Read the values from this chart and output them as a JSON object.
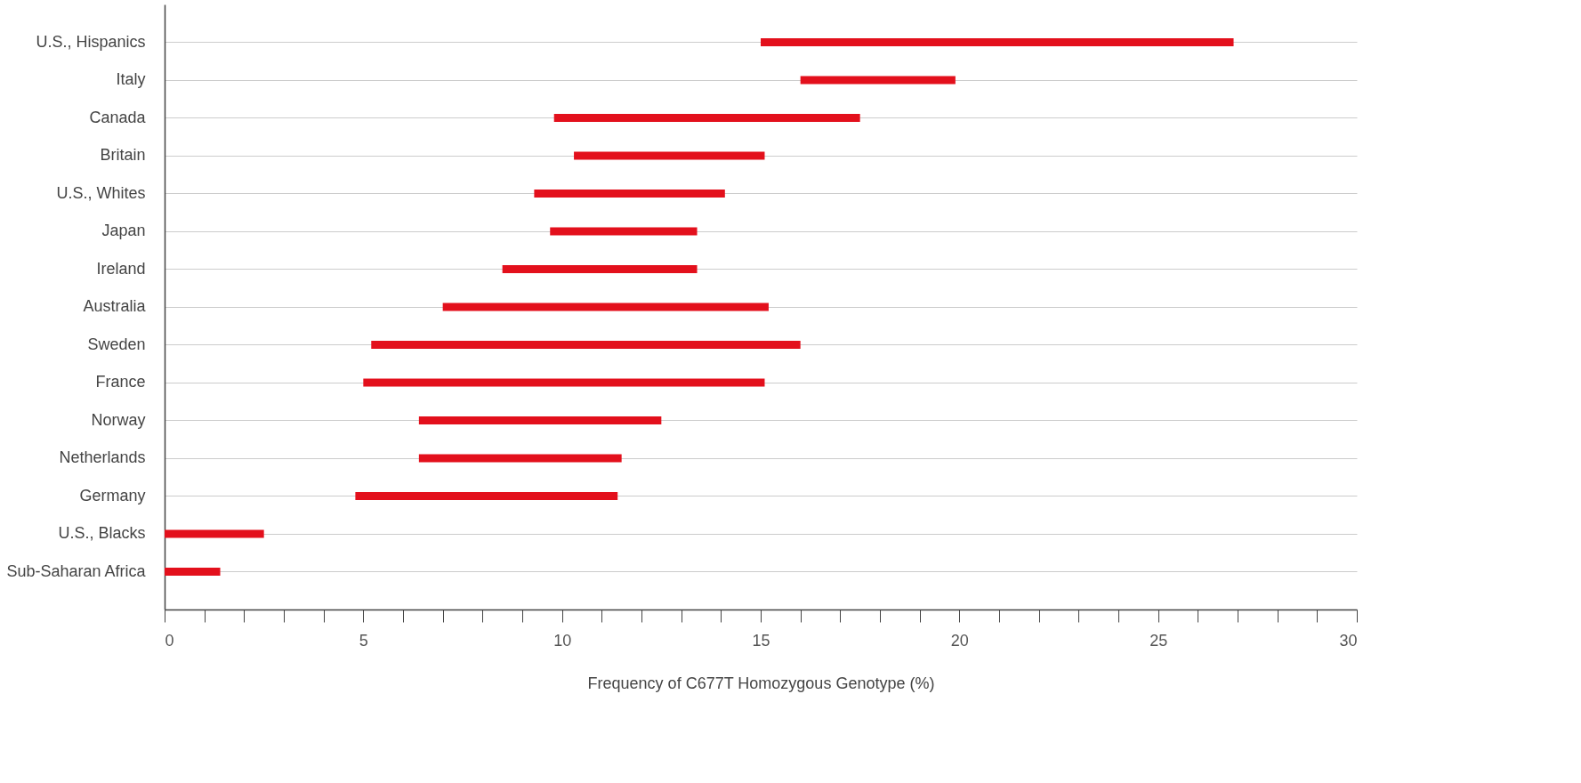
{
  "chart_data": {
    "type": "bar",
    "orientation": "horizontal",
    "xlabel": "Frequency of C677T Homozygous Genotype (%)",
    "categories": [
      "U.S., Hispanics",
      "Italy",
      "Canada",
      "Britain",
      "U.S., Whites",
      "Japan",
      "Ireland",
      "Australia",
      "Sweden",
      "France",
      "Norway",
      "Netherlands",
      "Germany",
      "U.S., Blacks",
      "Sub-Saharan Africa"
    ],
    "base": [
      15.0,
      16.0,
      9.8,
      10.3,
      9.3,
      9.7,
      8.5,
      7.0,
      5.2,
      5.0,
      6.4,
      6.4,
      4.8,
      0,
      0
    ],
    "values": [
      11.9,
      3.9,
      7.7,
      4.8,
      4.8,
      3.7,
      4.9,
      8.2,
      10.8,
      10.1,
      6.1,
      5.1,
      6.6,
      2.5,
      1.4
    ],
    "color": "#e3101c",
    "xlim": [
      0,
      30
    ],
    "xticks": [
      0,
      {
        "value": 1,
        "label": null
      },
      {
        "value": 2,
        "label": null
      },
      {
        "value": 3,
        "label": null
      },
      {
        "value": 4,
        "label": null
      },
      5,
      {
        "value": 6,
        "label": null
      },
      {
        "value": 7,
        "label": null
      },
      {
        "value": 8,
        "label": null
      },
      {
        "value": 9,
        "label": null
      },
      10,
      {
        "value": 11,
        "label": null
      },
      {
        "value": 12,
        "label": null
      },
      {
        "value": 13,
        "label": null
      },
      {
        "value": 14,
        "label": null
      },
      15,
      {
        "value": 16,
        "label": null
      },
      {
        "value": 17,
        "label": null
      },
      {
        "value": 18,
        "label": null
      },
      {
        "value": 19,
        "label": null
      },
      20,
      {
        "value": 21,
        "label": null
      },
      {
        "value": 22,
        "label": null
      },
      {
        "value": 23,
        "label": null
      },
      {
        "value": 24,
        "label": null
      },
      25,
      {
        "value": 26,
        "label": null
      },
      {
        "value": 27,
        "label": null
      },
      {
        "value": 28,
        "label": null
      },
      {
        "value": 29,
        "label": null
      },
      30
    ],
    "grid": "y"
  }
}
